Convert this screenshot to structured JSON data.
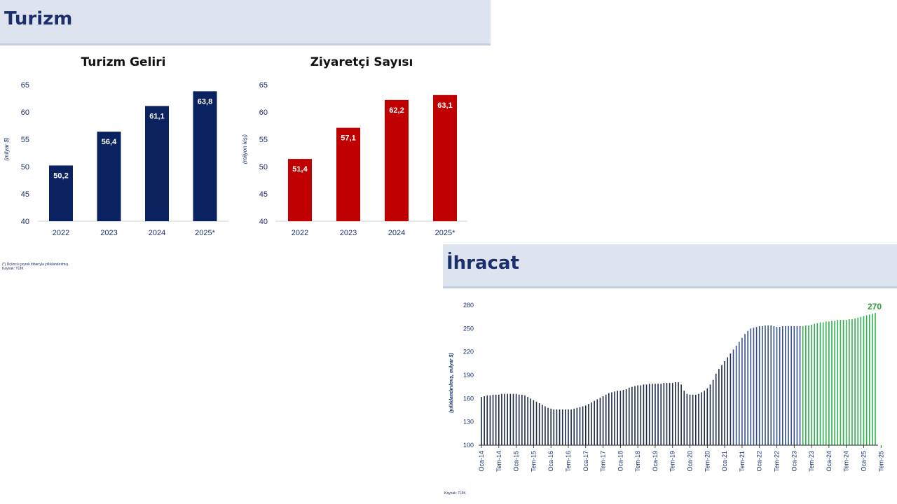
{
  "sections": {
    "turizm": {
      "title": "Turizm",
      "footnote": "(*) Üçüncü çeyrek itibarıyla yıllıklandırılmış.",
      "source": "Kaynak: TÜİK"
    },
    "ihracat": {
      "title": "İhracat",
      "source": "Kaynak: TÜİK"
    }
  },
  "chart_data": [
    {
      "id": "turizm-geliri",
      "type": "bar",
      "title": "Turizm Geliri",
      "ylabel": "(milyar $)",
      "categories": [
        "2022",
        "2023",
        "2024",
        "2025*"
      ],
      "values": [
        50.2,
        56.4,
        61.1,
        63.8
      ],
      "value_labels": [
        "50,2",
        "56,4",
        "61,1",
        "63,8"
      ],
      "ylim": [
        40,
        65
      ],
      "yticks": [
        40,
        45,
        50,
        55,
        60,
        65
      ],
      "color": "#0b2260"
    },
    {
      "id": "ziyaretci-sayisi",
      "type": "bar",
      "title": "Ziyaretçi Sayısı",
      "ylabel": "(milyon kişi)",
      "categories": [
        "2022",
        "2023",
        "2024",
        "2025*"
      ],
      "values": [
        51.4,
        57.1,
        62.2,
        63.1
      ],
      "value_labels": [
        "51,4",
        "57,1",
        "62,2",
        "63,1"
      ],
      "ylim": [
        40,
        65
      ],
      "yticks": [
        40,
        45,
        50,
        55,
        60,
        65
      ],
      "color": "#c00000"
    },
    {
      "id": "ihracat",
      "type": "bar",
      "ylabel": "(yıllıklandırılmış, milyar $)",
      "ylim": [
        100,
        280
      ],
      "yticks": [
        100,
        130,
        160,
        190,
        220,
        250,
        280
      ],
      "x_tick_labels": [
        "Oca-14",
        "Tem-14",
        "Oca-15",
        "Tem-15",
        "Oca-16",
        "Tem-16",
        "Oca-17",
        "Tem-17",
        "Oca-18",
        "Tem-18",
        "Oca-19",
        "Tem-19",
        "Oca-20",
        "Tem-20",
        "Oca-21",
        "Tem-21",
        "Oca-22",
        "Tem-22",
        "Oca-23",
        "Tem-23",
        "Oca-24",
        "Tem-24",
        "Oca-25",
        "Tem-25"
      ],
      "start_label": "Oca-14",
      "last_value_label": "270",
      "colors": {
        "early": "#1c2a44",
        "mid": "#34508a",
        "recent": "#2db04b",
        "last_label": "#2a9b3e"
      },
      "mid_from_index": 87,
      "recent_from_index": 111,
      "values": [
        162,
        163,
        164,
        164,
        165,
        165,
        165,
        166,
        166,
        166,
        166,
        166,
        166,
        165,
        165,
        164,
        162,
        160,
        158,
        156,
        154,
        152,
        150,
        148,
        147,
        146,
        146,
        146,
        146,
        146,
        146,
        146,
        147,
        148,
        149,
        150,
        151,
        153,
        155,
        157,
        159,
        161,
        163,
        165,
        167,
        168,
        169,
        170,
        170,
        171,
        172,
        174,
        175,
        176,
        177,
        177,
        178,
        178,
        179,
        179,
        179,
        179,
        179,
        180,
        180,
        180,
        180,
        181,
        181,
        178,
        170,
        166,
        165,
        165,
        165,
        166,
        168,
        170,
        173,
        178,
        184,
        192,
        198,
        203,
        208,
        213,
        218,
        223,
        228,
        233,
        238,
        243,
        247,
        250,
        251,
        252,
        253,
        253,
        254,
        254,
        254,
        253,
        252,
        252,
        253,
        253,
        253,
        253,
        253,
        253,
        253,
        253,
        254,
        254,
        255,
        256,
        257,
        258,
        258,
        259,
        259,
        260,
        260,
        261,
        261,
        261,
        261,
        262,
        262,
        263,
        264,
        265,
        266,
        267,
        268,
        269,
        270
      ]
    }
  ]
}
